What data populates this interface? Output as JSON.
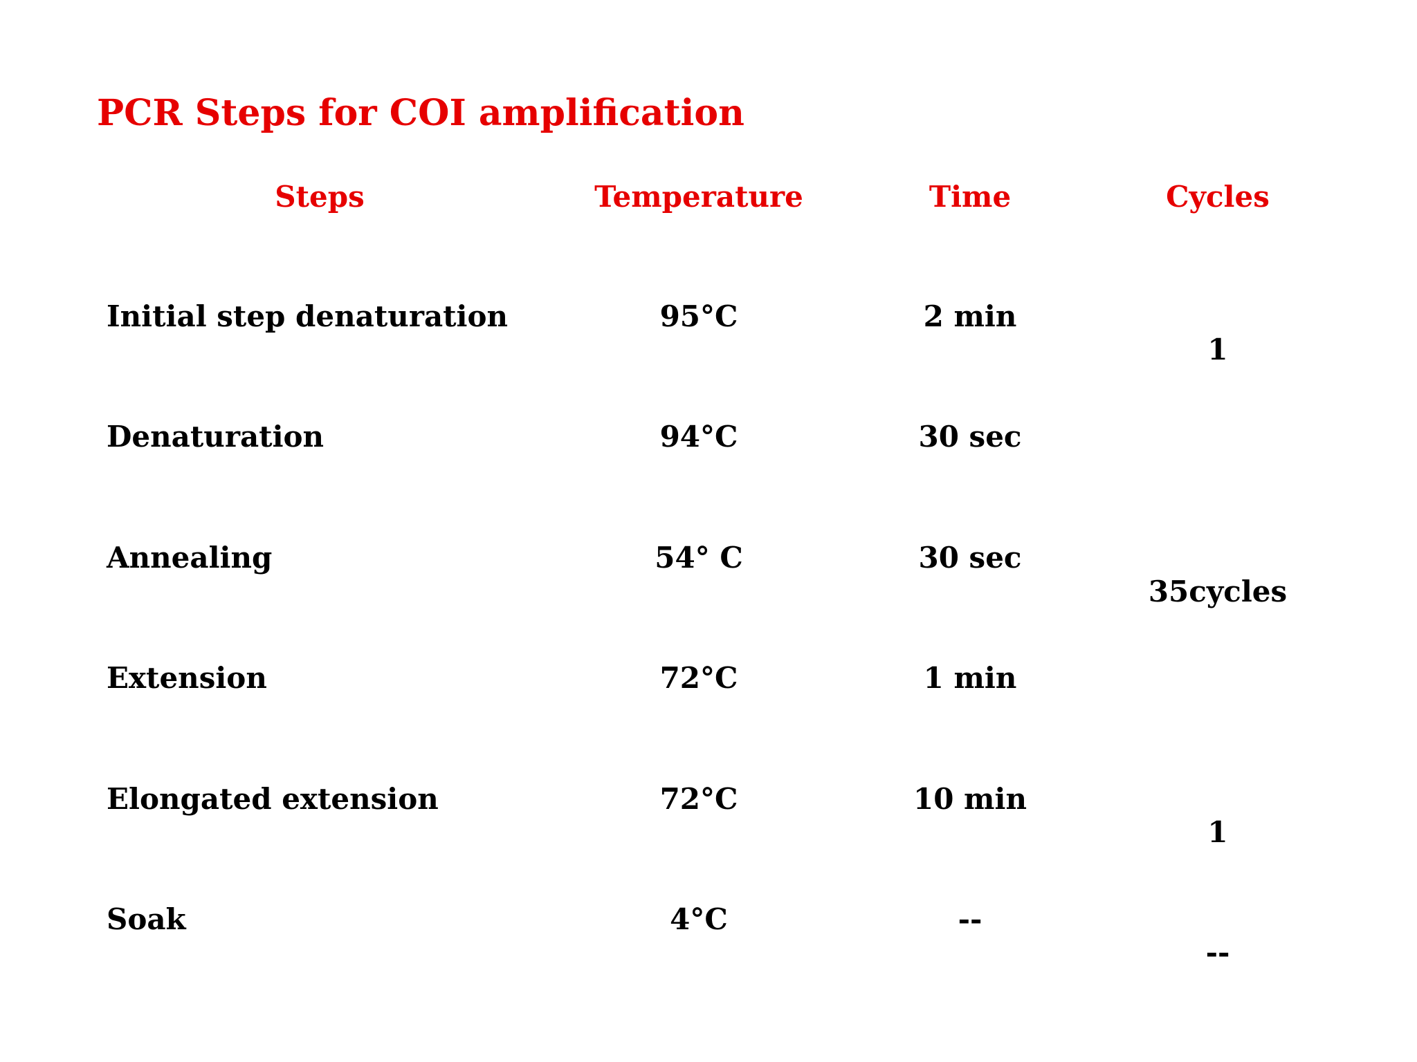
{
  "title": "PCR Steps for COI amplification",
  "headers": {
    "steps": "Steps",
    "temperature": "Temperature",
    "time": "Time",
    "cycles": "Cycles"
  },
  "rows": [
    {
      "step": "Initial step denaturation",
      "temperature": "95°C",
      "time": "2 min"
    },
    {
      "step": "Denaturation",
      "temperature": "94°C",
      "time": "30 sec"
    },
    {
      "step": "Annealing",
      "temperature": "54° C",
      "time": "30 sec"
    },
    {
      "step": "Extension",
      "temperature": "72°C",
      "time": "1 min"
    },
    {
      "step": "Elongated extension",
      "temperature": "72°C",
      "time": "10 min"
    },
    {
      "step": "Soak",
      "temperature": "4°C",
      "time": "--"
    }
  ],
  "cycles": [
    {
      "label": "1"
    },
    {
      "label": "35cycles"
    },
    {
      "label": "1"
    },
    {
      "label": "--"
    }
  ],
  "colors": {
    "accent": "#e60000",
    "text": "#000000",
    "background": "#ffffff"
  }
}
